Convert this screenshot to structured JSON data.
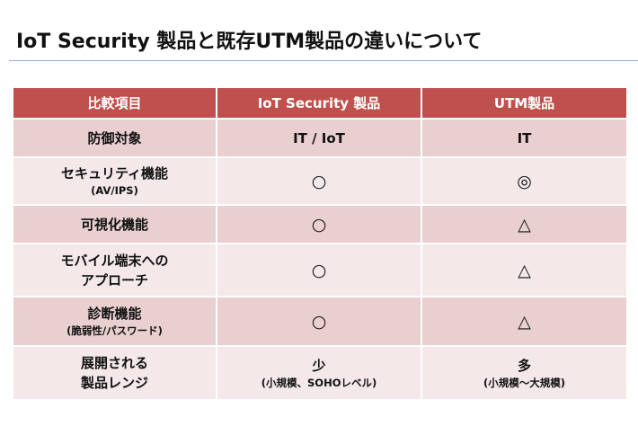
{
  "page": {
    "title": "IoT Security 製品と既存UTM製品の違いについて"
  },
  "table": {
    "headers": [
      "比較項目",
      "IoT Security 製品",
      "UTM製品"
    ],
    "rows": [
      {
        "item": [
          "防御対象"
        ],
        "iot": {
          "main": "IT / IoT",
          "sub": ""
        },
        "utm": {
          "main": "IT",
          "sub": ""
        }
      },
      {
        "item": [
          "セキュリティ機能"
        ],
        "item_sub": "(AV/IPS)",
        "iot": {
          "main": "○",
          "sub": ""
        },
        "utm": {
          "main": "◎",
          "sub": ""
        }
      },
      {
        "item": [
          "可視化機能"
        ],
        "iot": {
          "main": "○",
          "sub": ""
        },
        "utm": {
          "main": "△",
          "sub": ""
        }
      },
      {
        "item": [
          "モバイル端末への",
          "アプローチ"
        ],
        "iot": {
          "main": "○",
          "sub": ""
        },
        "utm": {
          "main": "△",
          "sub": ""
        }
      },
      {
        "item": [
          "診断機能"
        ],
        "item_sub": "(脆弱性/パスワード)",
        "iot": {
          "main": "○",
          "sub": ""
        },
        "utm": {
          "main": "△",
          "sub": ""
        }
      },
      {
        "item": [
          "展開される",
          "製品レンジ"
        ],
        "iot": {
          "main": "少",
          "sub": "(小規模、SOHOレベル)"
        },
        "utm": {
          "main": "多",
          "sub": "(小規模～大規模)"
        }
      }
    ]
  },
  "colors": {
    "header_bg": "#c0504d",
    "row_dark": "#e9cfcf",
    "row_light": "#f4e8e8",
    "title_rule": "#8fb0da"
  }
}
